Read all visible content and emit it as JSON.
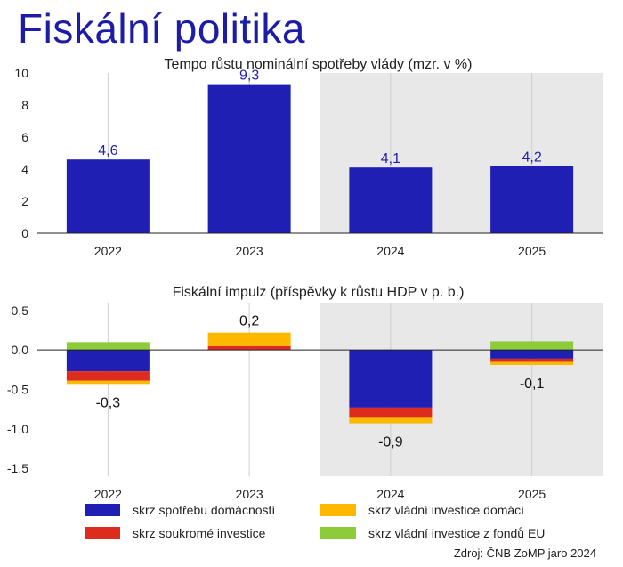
{
  "page": {
    "title": "Fiskální politika",
    "title_color": "#1c1ca6",
    "source": "Zdroj: ČNB ZoMP jaro 2024"
  },
  "legend": {
    "items": [
      {
        "label": "skrz spotřebu domácností",
        "color": "#1f1fb4"
      },
      {
        "label": "skrz vládní investice domácí",
        "color": "#ffb800"
      },
      {
        "label": "skrz soukromé investice",
        "color": "#dd2b1e"
      },
      {
        "label": "skrz vládní investice z fondů EU",
        "color": "#8dcb3b"
      }
    ]
  },
  "chart_data": [
    {
      "type": "bar",
      "title": "Tempo růstu nominální spotřeby vlády (mzr. v %)",
      "categories": [
        "2022",
        "2023",
        "2024",
        "2025"
      ],
      "values": [
        4.6,
        9.3,
        4.1,
        4.2
      ],
      "value_labels": [
        "4,6",
        "9,3",
        "4,1",
        "4,2"
      ],
      "ylim": [
        0,
        10
      ],
      "yticks": [
        0,
        2,
        4,
        6,
        8,
        10
      ],
      "ytick_labels": [
        "0",
        "2",
        "4",
        "6",
        "8",
        "10"
      ],
      "bar_color": "#1f1fb4",
      "label_color": "#1f1fb4",
      "forecast_shaded_from": "2024",
      "shade_color": "#e8e8e8",
      "grid": "vertical"
    },
    {
      "type": "bar",
      "stacked": true,
      "title": "Fiskální impulz (příspěvky k růstu HDP v p. b.)",
      "categories": [
        "2022",
        "2023",
        "2024",
        "2025"
      ],
      "series": [
        {
          "name": "skrz spotřebu domácností",
          "color": "#1f1fb4",
          "values": [
            -0.27,
            0.0,
            -0.73,
            -0.11
          ]
        },
        {
          "name": "skrz soukromé investice",
          "color": "#dd2b1e",
          "values": [
            -0.12,
            0.05,
            -0.13,
            -0.04
          ]
        },
        {
          "name": "skrz vládní investice domácí",
          "color": "#ffb800",
          "values": [
            -0.04,
            0.17,
            -0.07,
            -0.04
          ]
        },
        {
          "name": "skrz vládní investice z fondů EU",
          "color": "#8dcb3b",
          "values": [
            0.1,
            0.0,
            0.0,
            0.11
          ]
        }
      ],
      "totals": [
        -0.3,
        0.2,
        -0.9,
        -0.1
      ],
      "total_labels": [
        "-0,3",
        "0,2",
        "-0,9",
        "-0,1"
      ],
      "ylim": [
        -1.6,
        0.6
      ],
      "yticks": [
        0.5,
        0.0,
        -0.5,
        -1.0,
        -1.5
      ],
      "ytick_labels": [
        "0,5",
        "0,0",
        "-0,5",
        "-1,0",
        "-1,5"
      ],
      "forecast_shaded_from": "2024",
      "shade_color": "#e8e8e8",
      "grid": "vertical"
    }
  ]
}
